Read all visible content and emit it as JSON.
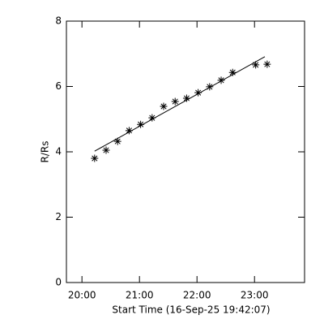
{
  "chart_data": {
    "type": "scatter",
    "xlabel": "Start Time (16-Sep-25 19:42:07)",
    "ylabel": "R/Rs",
    "xlim": [
      19.73,
      23.87
    ],
    "ylim": [
      0,
      8
    ],
    "xticks": [
      {
        "value": 20,
        "label": "20:00"
      },
      {
        "value": 21,
        "label": "21:00"
      },
      {
        "value": 22,
        "label": "22:00"
      },
      {
        "value": 23,
        "label": "23:00"
      }
    ],
    "yticks": [
      0,
      2,
      4,
      6,
      8
    ],
    "color": "#000000",
    "series": [
      {
        "style": "asterisk",
        "x": [
          20.22,
          20.42,
          20.62,
          20.82,
          21.02,
          21.22,
          21.42,
          21.62,
          21.82,
          22.02,
          22.22,
          22.42,
          22.62,
          23.02,
          23.22
        ],
        "values": [
          3.8,
          4.05,
          4.32,
          4.65,
          4.84,
          5.04,
          5.39,
          5.54,
          5.64,
          5.81,
          5.99,
          6.19,
          6.43,
          6.66,
          6.68
        ]
      },
      {
        "style": "line",
        "x": [
          20.22,
          23.18
        ],
        "values": [
          4.02,
          6.91
        ]
      }
    ]
  }
}
